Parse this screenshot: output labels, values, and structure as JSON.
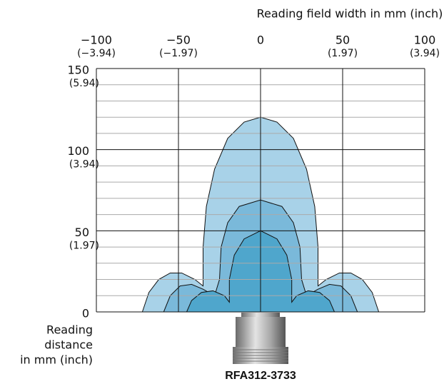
{
  "chart_data": {
    "type": "field",
    "title": "Reading field width in mm (inch)",
    "y_label": [
      "Reading",
      "distance",
      "in mm (inch)"
    ],
    "sensor_label": "RFA312-3733",
    "xlim": [
      -100,
      100
    ],
    "ylim": [
      0,
      150
    ],
    "xticks": [
      {
        "value": -100,
        "label": "−100",
        "inch": "(−3.94)"
      },
      {
        "value": -50,
        "label": "−50",
        "inch": "(−1.97)"
      },
      0,
      {
        "value": 50,
        "label": "50",
        "inch": "(1.97)"
      },
      {
        "value": 100,
        "label": "100",
        "inch": "(3.94)"
      }
    ],
    "yticks": [
      0,
      {
        "value": 50,
        "label": "50",
        "inch": "(1.97)"
      },
      {
        "value": 100,
        "label": "100",
        "inch": "(3.94)"
      },
      {
        "value": 150,
        "label": "150",
        "inch": "(5.94)"
      }
    ],
    "yminorticks": [
      10,
      20,
      30,
      40,
      60,
      70,
      80,
      90,
      110,
      120,
      130,
      140
    ],
    "fields": [
      {
        "color": "#a8d2e8",
        "x": [
          -72,
          -68,
          -62,
          -55,
          -48,
          -40,
          -35,
          -35,
          -33,
          -28,
          -20,
          -10,
          0,
          10,
          20,
          28,
          33,
          35,
          35,
          40,
          48,
          55,
          62,
          68,
          72
        ],
        "y": [
          0,
          12,
          20,
          24,
          24,
          20,
          16,
          40,
          65,
          88,
          107,
          117,
          120,
          117,
          107,
          88,
          65,
          40,
          16,
          20,
          24,
          24,
          20,
          12,
          0
        ]
      },
      {
        "color": "#7ab9da",
        "x": [
          -59,
          -55,
          -49,
          -42,
          -35,
          -28,
          -25,
          -24,
          -20,
          -13,
          0,
          13,
          20,
          24,
          25,
          28,
          35,
          42,
          49,
          55,
          59
        ],
        "y": [
          0,
          10,
          16,
          17,
          14,
          10,
          20,
          40,
          55,
          65,
          69,
          65,
          55,
          40,
          20,
          10,
          14,
          17,
          16,
          10,
          0
        ]
      },
      {
        "color": "#4fa6cc",
        "x": [
          -45,
          -42,
          -36,
          -29,
          -22,
          -19,
          -19,
          -16,
          -10,
          0,
          10,
          16,
          19,
          19,
          22,
          29,
          36,
          42,
          45
        ],
        "y": [
          0,
          7,
          12,
          13,
          10,
          6,
          20,
          35,
          45,
          50,
          45,
          35,
          20,
          6,
          10,
          13,
          12,
          7,
          0
        ]
      }
    ]
  }
}
